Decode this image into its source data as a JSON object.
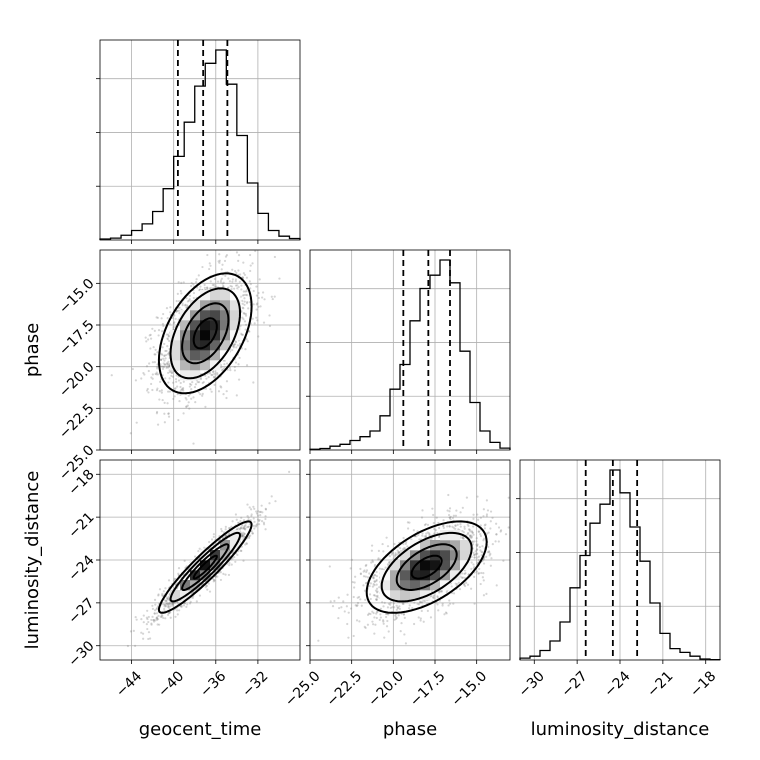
{
  "chart_data": {
    "type": "corner",
    "parameters": [
      "geocent_time",
      "phase",
      "luminosity_distance"
    ],
    "axis_labels": {
      "geocent_time": "geocent_time",
      "phase": "phase",
      "luminosity_distance": "luminosity_distance"
    },
    "ranges": {
      "geocent_time": [
        -47,
        -28
      ],
      "phase": [
        -25,
        -13
      ],
      "luminosity_distance": [
        -31,
        -17
      ]
    },
    "ticks": {
      "geocent_time": [
        "−44",
        "−40",
        "−36",
        "−32"
      ],
      "phase": [
        "−25.0",
        "−22.5",
        "−20.0",
        "−17.5",
        "−15.0"
      ],
      "luminosity_distance": [
        "−30",
        "−27",
        "−24",
        "−21",
        "−18"
      ]
    },
    "tick_values": {
      "geocent_time": [
        -44,
        -40,
        -36,
        -32
      ],
      "phase": [
        -25,
        -22.5,
        -20,
        -17.5,
        -15
      ],
      "luminosity_distance": [
        -30,
        -27,
        -24,
        -21,
        -18
      ]
    },
    "marginals": [
      {
        "parameter": "geocent_time",
        "bin_edges": [
          -47,
          -46,
          -45,
          -44,
          -43,
          -42,
          -41,
          -40,
          -39,
          -38,
          -37,
          -36,
          -35,
          -34,
          -33,
          -32,
          -31,
          -30,
          -29,
          -28
        ],
        "counts": [
          0.005,
          0.01,
          0.025,
          0.05,
          0.085,
          0.15,
          0.27,
          0.44,
          0.62,
          0.81,
          0.93,
          1.0,
          0.82,
          0.55,
          0.3,
          0.14,
          0.05,
          0.02,
          0.008
        ],
        "quantiles": [
          -39.6,
          -37.2,
          -34.9
        ]
      },
      {
        "parameter": "phase",
        "bin_edges": [
          -25,
          -24.4,
          -23.8,
          -23.2,
          -22.6,
          -22,
          -21.4,
          -20.8,
          -20.2,
          -19.6,
          -19,
          -18.4,
          -17.8,
          -17.2,
          -16.6,
          -16,
          -15.4,
          -14.8,
          -14.2,
          -13.6,
          -13
        ],
        "counts": [
          0.004,
          0.008,
          0.02,
          0.03,
          0.05,
          0.07,
          0.1,
          0.18,
          0.32,
          0.45,
          0.68,
          0.85,
          0.92,
          1.0,
          0.88,
          0.52,
          0.25,
          0.1,
          0.04,
          0.01
        ],
        "quantiles": [
          -19.4,
          -17.9,
          -16.6
        ]
      },
      {
        "parameter": "luminosity_distance",
        "bin_edges": [
          -31,
          -30.3,
          -29.6,
          -28.9,
          -28.2,
          -27.5,
          -26.8,
          -26.1,
          -25.4,
          -24.7,
          -24,
          -23.3,
          -22.6,
          -21.9,
          -21.2,
          -20.5,
          -19.8,
          -19.1,
          -18.4,
          -17.7,
          -17
        ],
        "counts": [
          0.01,
          0.02,
          0.05,
          0.1,
          0.2,
          0.38,
          0.55,
          0.72,
          0.82,
          1.0,
          0.88,
          0.7,
          0.52,
          0.3,
          0.14,
          0.06,
          0.04,
          0.02,
          0.005,
          0.002
        ],
        "quantiles": [
          -26.4,
          -24.5,
          -22.8
        ]
      }
    ],
    "joint": [
      {
        "x": "geocent_time",
        "y": "phase",
        "mean": [
          -37,
          -18
        ],
        "sd": [
          2.2,
          1.8
        ],
        "rho": 0.45
      },
      {
        "x": "geocent_time",
        "y": "luminosity_distance",
        "mean": [
          -37,
          -24.5
        ],
        "sd": [
          2.2,
          1.6
        ],
        "rho": 0.93
      },
      {
        "x": "phase",
        "y": "luminosity_distance",
        "mean": [
          -18,
          -24.5
        ],
        "sd": [
          1.8,
          1.6
        ],
        "rho": 0.55
      }
    ],
    "contour_levels_sigma": [
      0.5,
      1.0,
      1.5,
      2.0
    ],
    "grid": true,
    "colors": {
      "line": "#000000",
      "grid": "#b0b0b0",
      "points": "#888888"
    }
  }
}
